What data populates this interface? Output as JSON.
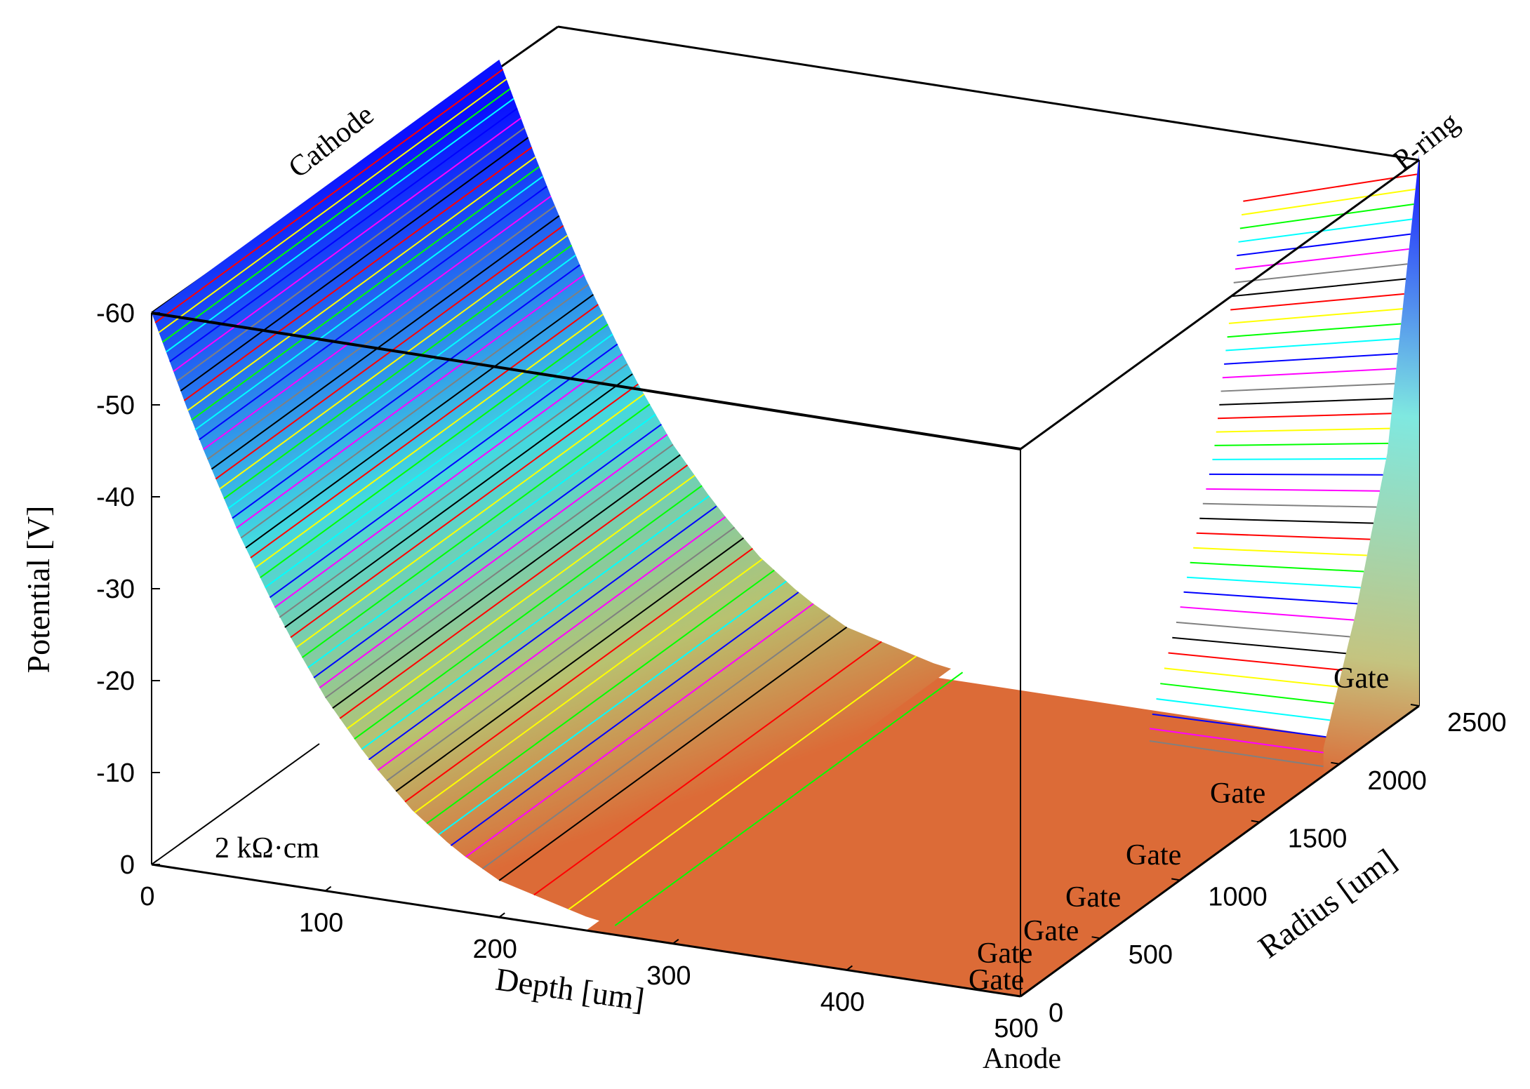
{
  "chart_data": {
    "type": "surface",
    "title": "",
    "zlabel": "Potential [V]",
    "xlabel": "Depth [um]",
    "ylabel": "Radius [um]",
    "zlim": [
      0,
      -60
    ],
    "xlim": [
      0,
      500
    ],
    "ylim": [
      0,
      2500
    ],
    "z_ticks": [
      "-60",
      "-50",
      "-40",
      "-30",
      "-20",
      "-10",
      "0"
    ],
    "x_ticks": [
      "0",
      "100",
      "200",
      "300",
      "400",
      "500"
    ],
    "y_ticks": [
      "0",
      "500",
      "1000",
      "1500",
      "2000",
      "2500"
    ],
    "depth_profile": {
      "depth": [
        0,
        25,
        50,
        75,
        100,
        125,
        150,
        175,
        200,
        250,
        300,
        400,
        500
      ],
      "potential": [
        -60,
        -48,
        -37.5,
        -28.5,
        -21,
        -15,
        -10.2,
        -6.6,
        -4,
        -1.5,
        0,
        0,
        0
      ]
    },
    "radius_profile_at_anode": {
      "radius": [
        0,
        500,
        1000,
        1500,
        1900,
        2100,
        2300,
        2500
      ],
      "potential": [
        0,
        0,
        0,
        0,
        -3,
        -15,
        -30,
        -60
      ]
    },
    "annotations": {
      "cathode": "Cathode",
      "p_ring": "P-ring",
      "anode": "Anode",
      "resistivity": "2 kΩ·cm",
      "gate_labels": [
        "Gate",
        "Gate",
        "Gate",
        "Gate",
        "Gate",
        "Gate",
        "Gate"
      ]
    },
    "surface_color_top": "#0a10ff",
    "surface_color_mid": "#43e4d2",
    "surface_color_bottom": "#dc6b37",
    "contour_colors": [
      "#ff0000",
      "#ffff00",
      "#00ff00",
      "#00ffff",
      "#0000ff",
      "#ff00ff",
      "#808080",
      "#000000"
    ]
  }
}
